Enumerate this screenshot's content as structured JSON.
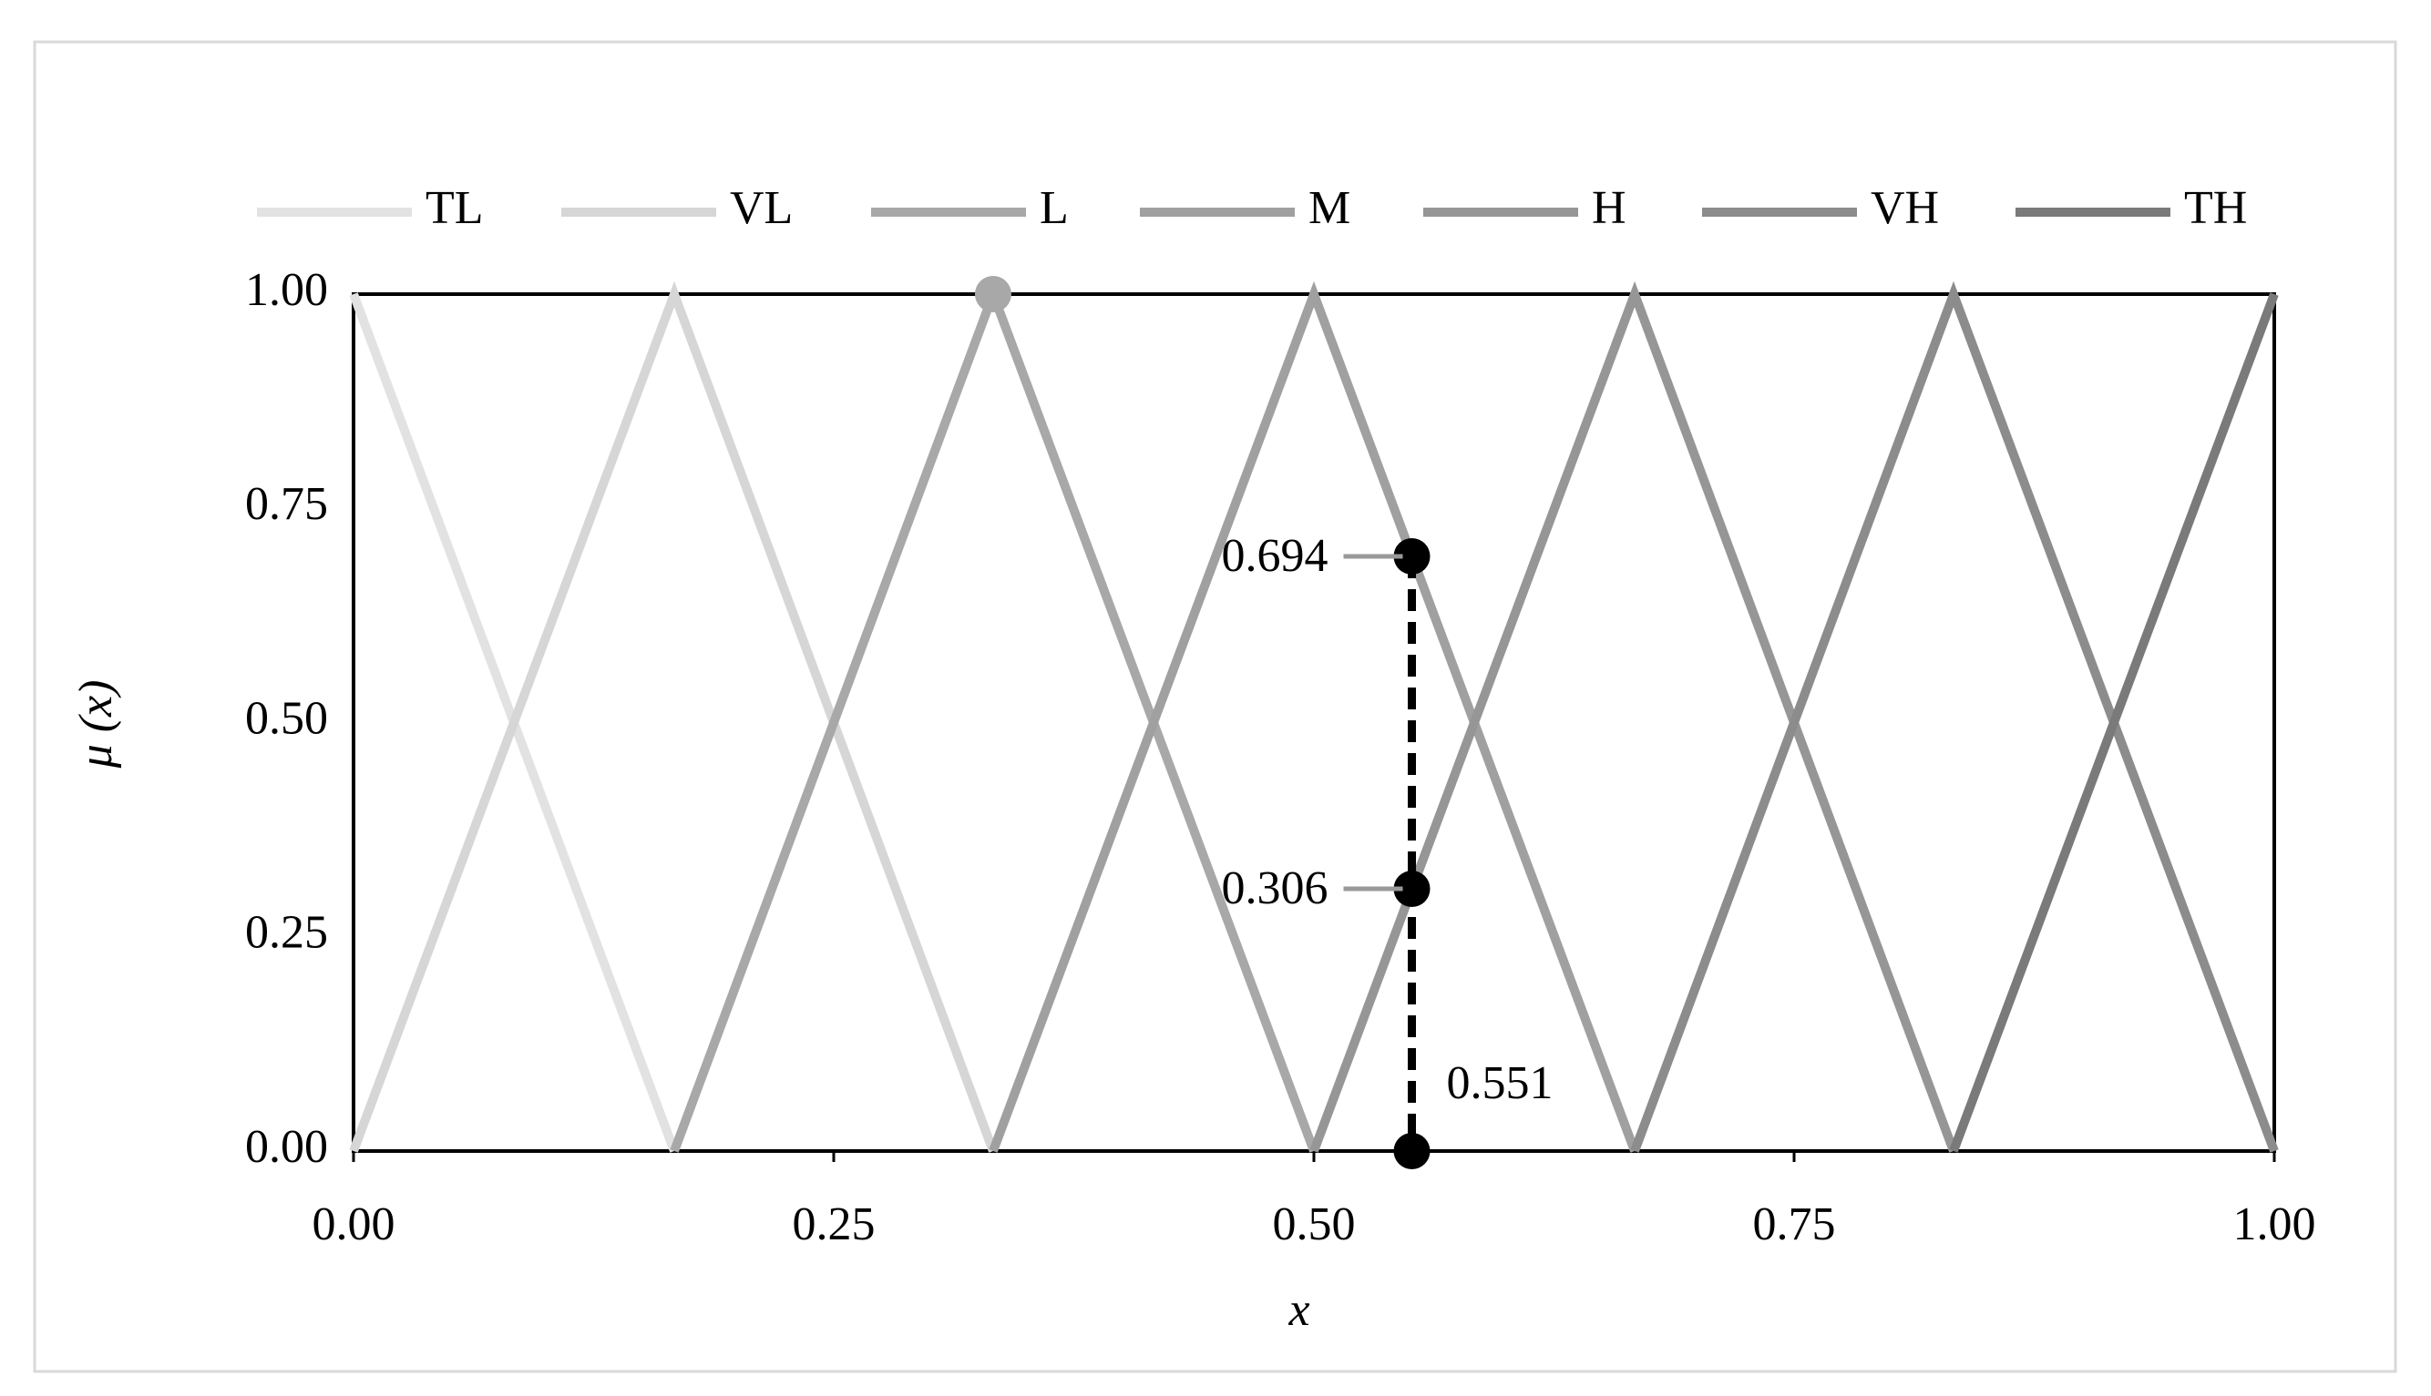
{
  "chart_data": {
    "type": "line",
    "x_label": "x",
    "y_label": "μ (x)",
    "xlim": [
      0,
      1
    ],
    "ylim": [
      0,
      1
    ],
    "xticks": [
      {
        "value": 0,
        "label": "0.00"
      },
      {
        "value": 0.25,
        "label": "0.25"
      },
      {
        "value": 0.5,
        "label": "0.50"
      },
      {
        "value": 0.75,
        "label": "0.75"
      },
      {
        "value": 1,
        "label": "1.00"
      }
    ],
    "yticks": [
      {
        "value": 0,
        "label": "0.00"
      },
      {
        "value": 0.25,
        "label": "0.25"
      },
      {
        "value": 0.5,
        "label": "0.50"
      },
      {
        "value": 0.75,
        "label": "0.75"
      },
      {
        "value": 1,
        "label": "1.00"
      }
    ],
    "legend": "top",
    "series": [
      {
        "name": "TL",
        "color": "#e2e2e2",
        "x": [
          0,
          0.167
        ],
        "values": [
          1,
          0
        ]
      },
      {
        "name": "VL",
        "color": "#d6d6d6",
        "x": [
          0,
          0.167,
          0.333
        ],
        "values": [
          0,
          1,
          0
        ]
      },
      {
        "name": "L",
        "color": "#a8a8a8",
        "x": [
          0.167,
          0.333,
          0.5
        ],
        "values": [
          0,
          1,
          0
        ]
      },
      {
        "name": "M",
        "color": "#a0a0a0",
        "x": [
          0.333,
          0.5,
          0.667
        ],
        "values": [
          0,
          1,
          0
        ]
      },
      {
        "name": "H",
        "color": "#969696",
        "x": [
          0.5,
          0.667,
          0.833
        ],
        "values": [
          0,
          1,
          0
        ]
      },
      {
        "name": "VH",
        "color": "#8c8c8c",
        "x": [
          0.667,
          0.833,
          1
        ],
        "values": [
          0,
          1,
          0
        ]
      },
      {
        "name": "TH",
        "color": "#7a7a7a",
        "x": [
          0.833,
          1
        ],
        "values": [
          0,
          1
        ]
      }
    ],
    "highlight": {
      "x": 0.333,
      "y": 1,
      "color": "#a8a8a8"
    },
    "reading": {
      "x": 0.551,
      "y": [
        0.694,
        0.306,
        0
      ],
      "color": "#000000"
    }
  }
}
